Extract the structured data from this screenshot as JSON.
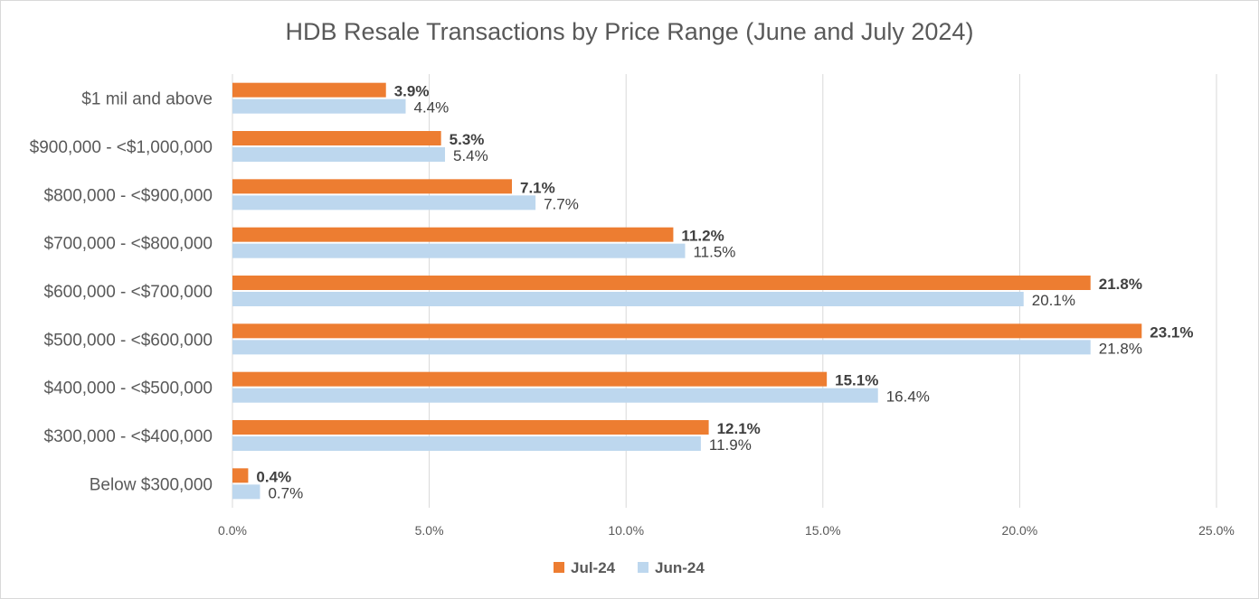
{
  "chart_data": {
    "type": "bar",
    "orientation": "horizontal",
    "title": "HDB Resale Transactions by Price Range (June and July 2024)",
    "categories": [
      "$1 mil and above",
      "$900,000 - <$1,000,000",
      "$800,000 - <$900,000",
      "$700,000 - <$800,000",
      "$600,000 - <$700,000",
      "$500,000 - <$600,000",
      "$400,000 - <$500,000",
      "$300,000 - <$400,000",
      "Below $300,000"
    ],
    "series": [
      {
        "name": "Jul-24",
        "color": "#ed7d31",
        "values": [
          3.9,
          5.3,
          7.1,
          11.2,
          21.8,
          23.1,
          15.1,
          12.1,
          0.4
        ],
        "labels": [
          "3.9%",
          "5.3%",
          "7.1%",
          "11.2%",
          "21.8%",
          "23.1%",
          "15.1%",
          "12.1%",
          "0.4%"
        ]
      },
      {
        "name": "Jun-24",
        "color": "#bdd7ee",
        "values": [
          4.4,
          5.4,
          7.7,
          11.5,
          20.1,
          21.8,
          16.4,
          11.9,
          0.7
        ],
        "labels": [
          "4.4%",
          "5.4%",
          "7.7%",
          "11.5%",
          "20.1%",
          "21.8%",
          "16.4%",
          "11.9%",
          "0.7%"
        ]
      }
    ],
    "xlim": [
      0,
      25
    ],
    "xticks": [
      0,
      5,
      10,
      15,
      20,
      25
    ],
    "xtick_labels": [
      "0.0%",
      "5.0%",
      "10.0%",
      "15.0%",
      "20.0%",
      "25.0%"
    ],
    "grid": true,
    "legend": "bottom",
    "xlabel": "",
    "ylabel": ""
  }
}
